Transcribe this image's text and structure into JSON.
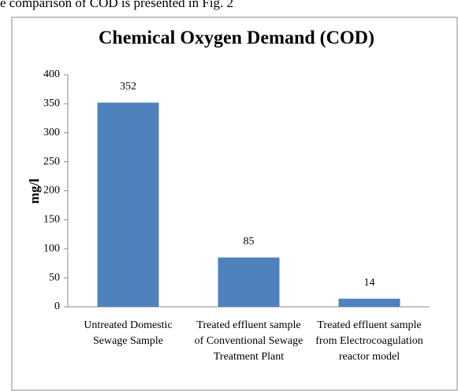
{
  "caption": "e comparison of COD is presented in Fig. 2",
  "chart_data": {
    "type": "bar",
    "title": "Chemical Oxygen Demand (COD)",
    "y_label": "mg/l",
    "categories": [
      "Untreated Domestic Sewage Sample",
      "Treated effluent sample of Conventional Sewage Treatment Plant",
      "Treated effluent sample from Electrocoagulation reactor model"
    ],
    "values": [
      352,
      85,
      14
    ],
    "color": "#4f81bd",
    "ylim": [
      0,
      400
    ],
    "yticks": [
      0,
      50,
      100,
      150,
      200,
      250,
      300,
      350,
      400
    ],
    "grid": false
  }
}
